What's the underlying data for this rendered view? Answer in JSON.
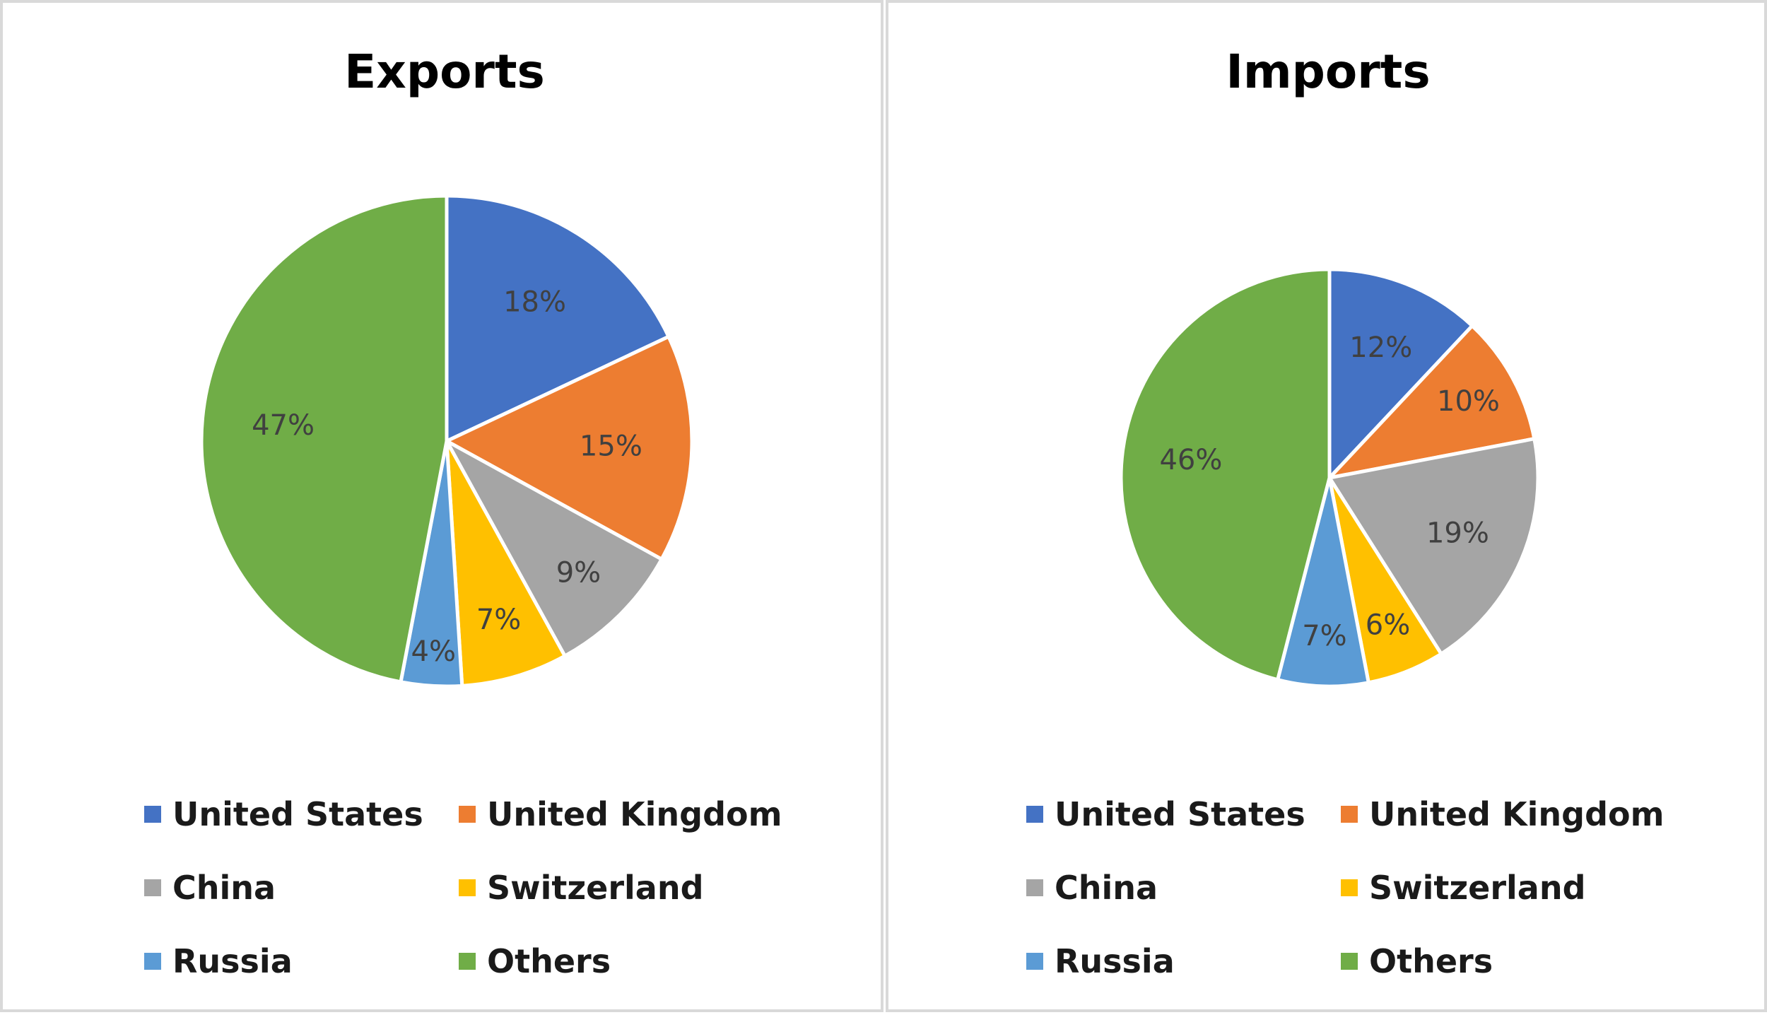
{
  "chart_data": [
    {
      "type": "pie",
      "title": "Exports",
      "categories": [
        "United States",
        "United Kingdom",
        "China",
        "Switzerland",
        "Russia",
        "Others"
      ],
      "values": [
        18,
        15,
        9,
        7,
        4,
        47
      ],
      "data_labels": [
        "18%",
        "15%",
        "9%",
        "7%",
        "4%",
        "47%"
      ],
      "colors": [
        "#4472C4",
        "#ED7D31",
        "#A5A5A5",
        "#FFC000",
        "#5B9BD5",
        "#70AD47"
      ],
      "legend_position": "bottom"
    },
    {
      "type": "pie",
      "title": "Imports",
      "categories": [
        "United States",
        "United Kingdom",
        "China",
        "Switzerland",
        "Russia",
        "Others"
      ],
      "values": [
        12,
        10,
        19,
        6,
        7,
        46
      ],
      "data_labels": [
        "12%",
        "10%",
        "19%",
        "6%",
        "7%",
        "46%"
      ],
      "colors": [
        "#4472C4",
        "#ED7D31",
        "#A5A5A5",
        "#FFC000",
        "#5B9BD5",
        "#70AD47"
      ],
      "legend_position": "bottom"
    }
  ]
}
